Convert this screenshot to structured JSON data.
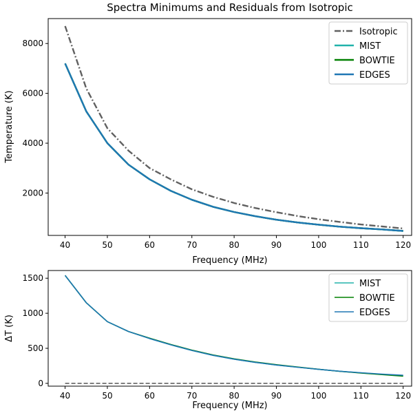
{
  "colors": {
    "isotropic": "#606060",
    "mist": "#20b2aa",
    "bowtie": "#008000",
    "edges": "#1f77b4"
  },
  "chart_data": [
    {
      "type": "line",
      "title": "Spectra Minimums and Residuals from Isotropic",
      "xlabel": "Frequency (MHz)",
      "ylabel": "Temperature (K)",
      "xlim": [
        36,
        122
      ],
      "ylim": [
        300,
        9000
      ],
      "xticks": [
        40,
        50,
        60,
        70,
        80,
        90,
        100,
        110,
        120
      ],
      "yticks": [
        2000,
        4000,
        6000,
        8000
      ],
      "legend_position": "top-right",
      "x": [
        40,
        45,
        50,
        55,
        60,
        65,
        70,
        75,
        80,
        85,
        90,
        95,
        100,
        105,
        110,
        115,
        120
      ],
      "series": [
        {
          "name": "Isotropic",
          "style": "dashdot",
          "values": [
            8700,
            6200,
            4600,
            3700,
            3000,
            2550,
            2150,
            1850,
            1600,
            1400,
            1230,
            1080,
            950,
            840,
            740,
            660,
            580
          ]
        },
        {
          "name": "MIST",
          "style": "solid",
          "values": [
            7200,
            5280,
            4000,
            3140,
            2550,
            2090,
            1730,
            1450,
            1240,
            1070,
            930,
            820,
            730,
            650,
            590,
            540,
            480
          ]
        },
        {
          "name": "BOWTIE",
          "style": "solid",
          "values": [
            7200,
            5280,
            4000,
            3140,
            2550,
            2090,
            1730,
            1450,
            1240,
            1070,
            930,
            820,
            730,
            650,
            590,
            540,
            480
          ]
        },
        {
          "name": "EDGES",
          "style": "solid",
          "values": [
            7200,
            5280,
            4000,
            3140,
            2550,
            2090,
            1730,
            1450,
            1240,
            1070,
            930,
            820,
            730,
            650,
            590,
            540,
            480
          ]
        }
      ]
    },
    {
      "type": "line",
      "xlabel": "Frequency (MHz)",
      "ylabel": "ΔT (K)",
      "xlim": [
        36,
        122
      ],
      "ylim": [
        -40,
        1610
      ],
      "xticks": [
        40,
        50,
        60,
        70,
        80,
        90,
        100,
        110,
        120
      ],
      "yticks": [
        0,
        500,
        1000,
        1500
      ],
      "legend_position": "top-right",
      "x": [
        40,
        45,
        50,
        55,
        60,
        65,
        70,
        75,
        80,
        85,
        90,
        95,
        100,
        105,
        110,
        115,
        120
      ],
      "baseline": {
        "style": "dashed",
        "values": [
          0,
          0,
          0,
          0,
          0,
          0,
          0,
          0,
          0,
          0,
          0,
          0,
          0,
          0,
          0,
          0,
          0
        ]
      },
      "series": [
        {
          "name": "MIST",
          "style": "solid",
          "values": [
            1540,
            1150,
            880,
            740,
            640,
            550,
            470,
            400,
            345,
            300,
            262,
            230,
            200,
            172,
            150,
            128,
            110
          ]
        },
        {
          "name": "BOWTIE",
          "style": "solid",
          "values": [
            1540,
            1150,
            880,
            740,
            645,
            555,
            475,
            405,
            350,
            305,
            266,
            233,
            202,
            172,
            148,
            125,
            103
          ]
        },
        {
          "name": "EDGES",
          "style": "solid",
          "values": [
            1540,
            1150,
            880,
            740,
            640,
            550,
            470,
            400,
            345,
            300,
            262,
            230,
            200,
            173,
            152,
            132,
            115
          ]
        }
      ]
    }
  ]
}
